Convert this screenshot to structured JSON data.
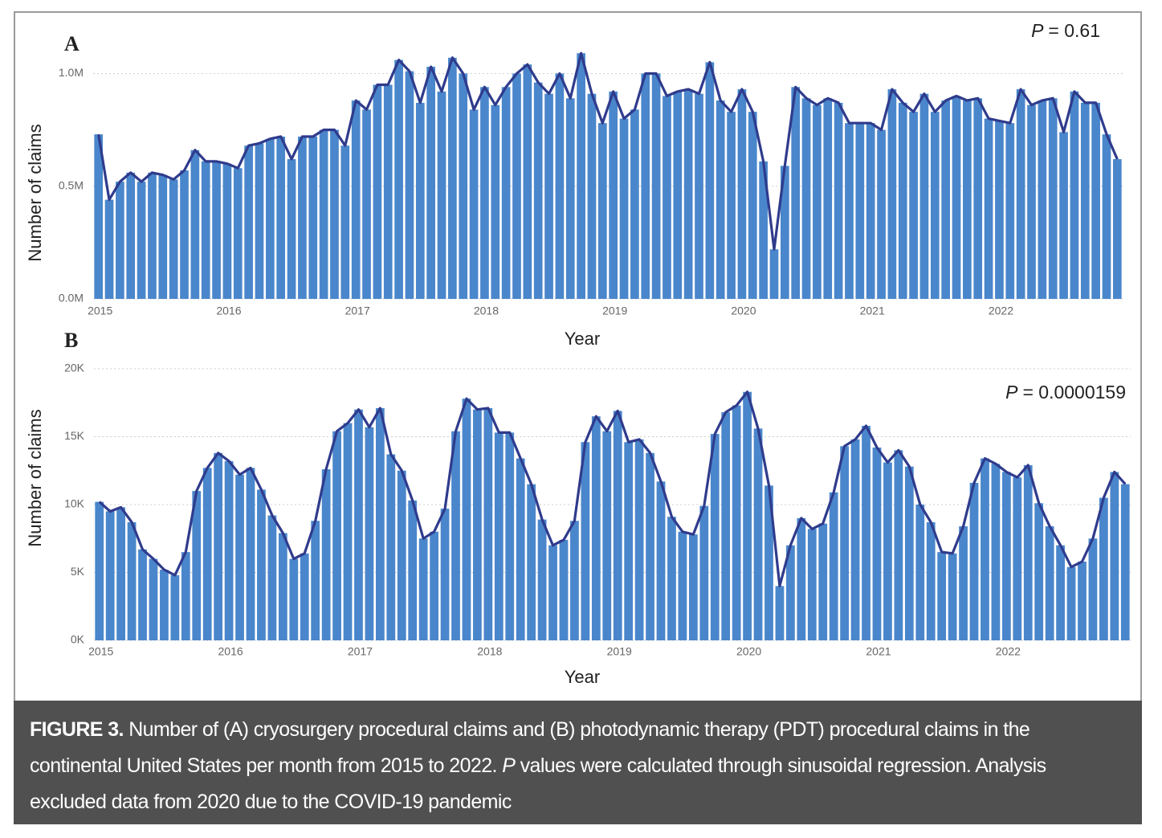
{
  "chart_data": [
    {
      "type": "combo",
      "panel_label": "A",
      "annotation": {
        "symbol": "P",
        "text": "= 0.61"
      },
      "x_label": "Year",
      "y_label": "Number of claims",
      "categories": [
        "2015",
        null,
        null,
        null,
        null,
        null,
        null,
        null,
        null,
        null,
        null,
        null,
        "2016",
        null,
        null,
        null,
        null,
        null,
        null,
        null,
        null,
        null,
        null,
        null,
        "2017",
        null,
        null,
        null,
        null,
        null,
        null,
        null,
        null,
        null,
        null,
        null,
        "2018",
        null,
        null,
        null,
        null,
        null,
        null,
        null,
        null,
        null,
        null,
        null,
        "2019",
        null,
        null,
        null,
        null,
        null,
        null,
        null,
        null,
        null,
        null,
        null,
        "2020",
        null,
        null,
        null,
        null,
        null,
        null,
        null,
        null,
        null,
        null,
        null,
        "2021",
        null,
        null,
        null,
        null,
        null,
        null,
        null,
        null,
        null,
        null,
        null,
        "2022",
        null,
        null,
        null,
        null,
        null,
        null,
        null,
        null,
        null,
        null,
        null
      ],
      "values": [
        730000,
        440000,
        520000,
        560000,
        520000,
        560000,
        550000,
        530000,
        570000,
        660000,
        610000,
        610000,
        600000,
        580000,
        680000,
        690000,
        710000,
        720000,
        620000,
        720000,
        720000,
        750000,
        750000,
        680000,
        880000,
        840000,
        950000,
        950000,
        1060000,
        1010000,
        870000,
        1030000,
        920000,
        1070000,
        1000000,
        840000,
        940000,
        860000,
        940000,
        1000000,
        1040000,
        960000,
        910000,
        1000000,
        890000,
        1090000,
        910000,
        780000,
        920000,
        800000,
        840000,
        1000000,
        1000000,
        900000,
        920000,
        930000,
        910000,
        1050000,
        880000,
        830000,
        930000,
        830000,
        610000,
        220000,
        590000,
        940000,
        890000,
        860000,
        890000,
        870000,
        780000,
        780000,
        780000,
        750000,
        930000,
        870000,
        830000,
        910000,
        830000,
        880000,
        900000,
        880000,
        890000,
        800000,
        790000,
        780000,
        930000,
        860000,
        880000,
        890000,
        740000,
        920000,
        870000,
        870000,
        730000,
        620000
      ],
      "color": "#4a86cb",
      "line_color": "#2f3b8c",
      "ylim": [
        0,
        1130000
      ],
      "yticks": [
        {
          "value": 0,
          "label": "0.0M"
        },
        {
          "value": 500000,
          "label": "0.5M"
        },
        {
          "value": 1000000,
          "label": "1.0M"
        }
      ],
      "grid": true
    },
    {
      "type": "combo",
      "panel_label": "B",
      "annotation": {
        "symbol": "P",
        "text": "= 0.0000159"
      },
      "x_label": "Year",
      "y_label": "Number of claims",
      "categories": [
        "2015",
        null,
        null,
        null,
        null,
        null,
        null,
        null,
        null,
        null,
        null,
        null,
        "2016",
        null,
        null,
        null,
        null,
        null,
        null,
        null,
        null,
        null,
        null,
        null,
        "2017",
        null,
        null,
        null,
        null,
        null,
        null,
        null,
        null,
        null,
        null,
        null,
        "2018",
        null,
        null,
        null,
        null,
        null,
        null,
        null,
        null,
        null,
        null,
        null,
        "2019",
        null,
        null,
        null,
        null,
        null,
        null,
        null,
        null,
        null,
        null,
        null,
        "2020",
        null,
        null,
        null,
        null,
        null,
        null,
        null,
        null,
        null,
        null,
        null,
        "2021",
        null,
        null,
        null,
        null,
        null,
        null,
        null,
        null,
        null,
        null,
        null,
        "2022",
        null,
        null,
        null,
        null,
        null,
        null,
        null,
        null,
        null,
        null,
        null
      ],
      "values": [
        10200,
        9500,
        9800,
        8700,
        6700,
        6000,
        5200,
        4800,
        6500,
        11000,
        12700,
        13800,
        13200,
        12200,
        12700,
        11100,
        9200,
        7900,
        6000,
        6400,
        8800,
        12600,
        15400,
        16000,
        17000,
        15700,
        17100,
        13700,
        12500,
        10300,
        7500,
        8000,
        9700,
        15400,
        17800,
        17000,
        17100,
        15300,
        15300,
        13400,
        11500,
        8900,
        7000,
        7400,
        8800,
        14600,
        16500,
        15400,
        16900,
        14600,
        14800,
        13800,
        11700,
        9100,
        8000,
        7800,
        9900,
        15200,
        16800,
        17300,
        18300,
        15600,
        11400,
        4000,
        7000,
        9000,
        8200,
        8600,
        10900,
        14300,
        14800,
        15800,
        14200,
        13100,
        14000,
        12800,
        10000,
        8700,
        6500,
        6400,
        8400,
        11600,
        13400,
        13000,
        12400,
        12000,
        12900,
        10100,
        8400,
        7000,
        5400,
        5800,
        7500,
        10500,
        12400,
        11500
      ],
      "color": "#4a86cb",
      "line_color": "#2f3b8c",
      "ylim": [
        0,
        20000
      ],
      "yticks": [
        {
          "value": 0,
          "label": "0K"
        },
        {
          "value": 5000,
          "label": "5K"
        },
        {
          "value": 10000,
          "label": "10K"
        },
        {
          "value": 15000,
          "label": "15K"
        },
        {
          "value": 20000,
          "label": "20K"
        }
      ],
      "grid": true
    }
  ],
  "caption": {
    "label": "FIGURE 3.",
    "parts": [
      "Number of (A) cryosurgery procedural claims and (B) photodynamic therapy (PDT) procedural claims in the continental United States per month from 2015 to 2022. ",
      "P",
      " values were calculated through sinusoidal regression. Analysis excluded data from 2020 due to the COVID-19 pandemic"
    ]
  }
}
